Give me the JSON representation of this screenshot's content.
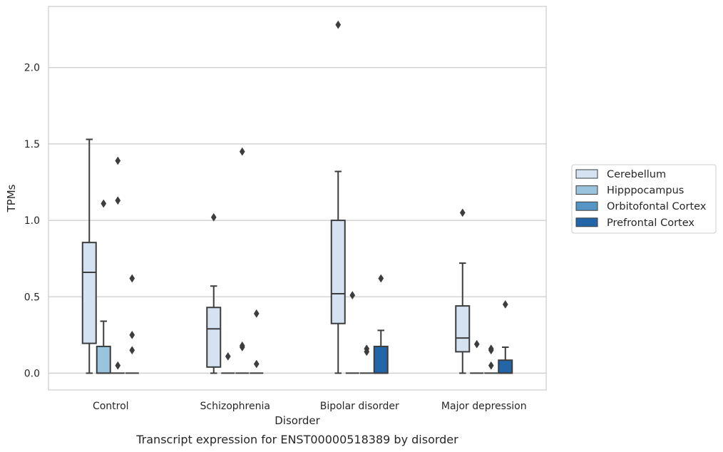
{
  "chart_data": {
    "type": "box",
    "title": "",
    "caption": "Transcript expression for ENST00000518389 by disorder",
    "xlabel": "Disorder",
    "ylabel": "TPMs",
    "ylim": [
      -0.11,
      2.4
    ],
    "yticks": [
      0.0,
      0.5,
      1.0,
      1.5,
      2.0
    ],
    "ytick_labels": [
      "0.0",
      "0.5",
      "1.0",
      "1.5",
      "2.0"
    ],
    "grid": true,
    "legend_position": "right",
    "categories": [
      "Control",
      "Schizophrenia",
      "Bipolar disorder",
      "Major depression"
    ],
    "series": [
      {
        "name": "Cerebellum",
        "color": "#d4e2f1",
        "boxes": [
          {
            "whislo": 0.0,
            "q1": 0.195,
            "med": 0.66,
            "q3": 0.855,
            "whishi": 1.53,
            "fliers": []
          },
          {
            "whislo": 0.0,
            "q1": 0.04,
            "med": 0.29,
            "q3": 0.43,
            "whishi": 0.57,
            "fliers": [
              1.02
            ]
          },
          {
            "whislo": 0.0,
            "q1": 0.325,
            "med": 0.52,
            "q3": 1.0,
            "whishi": 1.32,
            "fliers": [
              2.28
            ]
          },
          {
            "whislo": 0.0,
            "q1": 0.14,
            "med": 0.23,
            "q3": 0.44,
            "whishi": 0.72,
            "fliers": [
              1.05
            ]
          }
        ]
      },
      {
        "name": "Hipppocampus",
        "color": "#9ac4dd",
        "boxes": [
          {
            "whislo": 0.0,
            "q1": 0.0,
            "med": 0.0,
            "q3": 0.175,
            "whishi": 0.34,
            "fliers": [
              1.11
            ]
          },
          {
            "whislo": 0.0,
            "q1": 0.0,
            "med": 0.0,
            "q3": 0.0,
            "whishi": 0.0,
            "fliers": [
              0.11
            ]
          },
          {
            "whislo": 0.0,
            "q1": 0.0,
            "med": 0.0,
            "q3": 0.0,
            "whishi": 0.0,
            "fliers": [
              0.51
            ]
          },
          {
            "whislo": 0.0,
            "q1": 0.0,
            "med": 0.0,
            "q3": 0.0,
            "whishi": 0.0,
            "fliers": [
              0.19
            ]
          }
        ]
      },
      {
        "name": "Orbitofontal Cortex",
        "color": "#5595c5",
        "boxes": [
          {
            "whislo": 0.0,
            "q1": 0.0,
            "med": 0.0,
            "q3": 0.0,
            "whishi": 0.0,
            "fliers": [
              0.05,
              1.13,
              1.39
            ]
          },
          {
            "whislo": 0.0,
            "q1": 0.0,
            "med": 0.0,
            "q3": 0.0,
            "whishi": 0.0,
            "fliers": [
              0.17,
              0.18,
              1.45
            ]
          },
          {
            "whislo": 0.0,
            "q1": 0.0,
            "med": 0.0,
            "q3": 0.0,
            "whishi": 0.0,
            "fliers": [
              0.14,
              0.16
            ]
          },
          {
            "whislo": 0.0,
            "q1": 0.0,
            "med": 0.0,
            "q3": 0.0,
            "whishi": 0.0,
            "fliers": [
              0.05,
              0.15,
              0.16
            ]
          }
        ]
      },
      {
        "name": "Prefrontal Cortex",
        "color": "#2265a9",
        "boxes": [
          {
            "whislo": 0.0,
            "q1": 0.0,
            "med": 0.0,
            "q3": 0.0,
            "whishi": 0.0,
            "fliers": [
              0.15,
              0.25,
              0.62
            ]
          },
          {
            "whislo": 0.0,
            "q1": 0.0,
            "med": 0.0,
            "q3": 0.0,
            "whishi": 0.0,
            "fliers": [
              0.06,
              0.39
            ]
          },
          {
            "whislo": 0.0,
            "q1": 0.0,
            "med": 0.0,
            "q3": 0.175,
            "whishi": 0.28,
            "fliers": [
              0.62
            ]
          },
          {
            "whislo": 0.0,
            "q1": 0.0,
            "med": 0.0,
            "q3": 0.085,
            "whishi": 0.17,
            "fliers": [
              0.45
            ]
          }
        ]
      }
    ]
  }
}
